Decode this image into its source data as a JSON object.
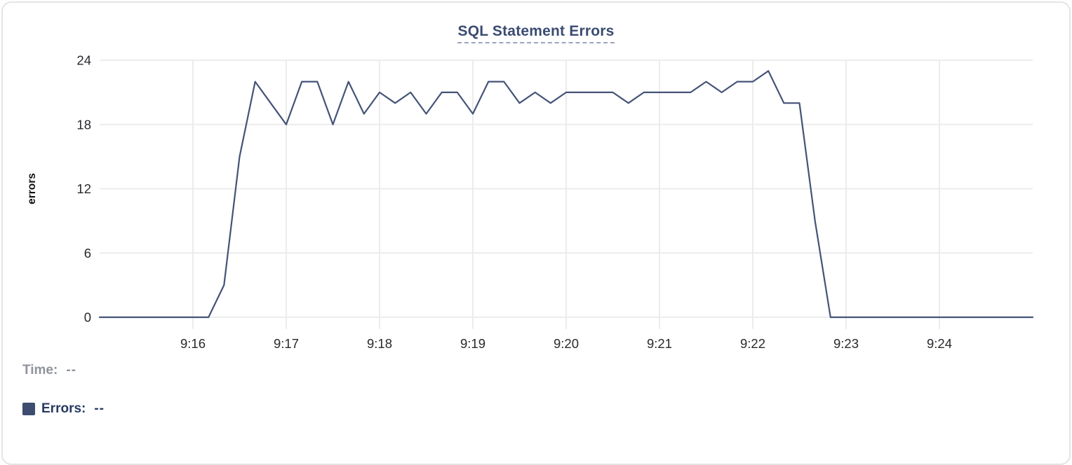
{
  "chart_data": {
    "type": "line",
    "title": "SQL Statement Errors",
    "xlabel": "",
    "ylabel": "errors",
    "ylim": [
      0,
      24
    ],
    "y_ticks": [
      0,
      6,
      12,
      18,
      24
    ],
    "x_range": [
      "9:15:00",
      "9:25:00"
    ],
    "x_tick_labels": [
      "9:16",
      "9:17",
      "9:18",
      "9:19",
      "9:20",
      "9:21",
      "9:22",
      "9:23",
      "9:24"
    ],
    "grid": true,
    "legend_position": "none",
    "series": [
      {
        "name": "Errors",
        "color": "#445377",
        "points": [
          [
            "9:15:00",
            0
          ],
          [
            "9:15:10",
            0
          ],
          [
            "9:15:20",
            0
          ],
          [
            "9:15:30",
            0
          ],
          [
            "9:15:40",
            0
          ],
          [
            "9:15:50",
            0
          ],
          [
            "9:16:00",
            0
          ],
          [
            "9:16:10",
            0
          ],
          [
            "9:16:20",
            3
          ],
          [
            "9:16:30",
            15
          ],
          [
            "9:16:40",
            22
          ],
          [
            "9:16:50",
            20
          ],
          [
            "9:17:00",
            18
          ],
          [
            "9:17:10",
            22
          ],
          [
            "9:17:20",
            22
          ],
          [
            "9:17:30",
            18
          ],
          [
            "9:17:40",
            22
          ],
          [
            "9:17:50",
            19
          ],
          [
            "9:18:00",
            21
          ],
          [
            "9:18:10",
            20
          ],
          [
            "9:18:20",
            21
          ],
          [
            "9:18:30",
            19
          ],
          [
            "9:18:40",
            21
          ],
          [
            "9:18:50",
            21
          ],
          [
            "9:19:00",
            19
          ],
          [
            "9:19:10",
            22
          ],
          [
            "9:19:20",
            22
          ],
          [
            "9:19:30",
            20
          ],
          [
            "9:19:40",
            21
          ],
          [
            "9:19:50",
            20
          ],
          [
            "9:20:00",
            21
          ],
          [
            "9:20:10",
            21
          ],
          [
            "9:20:20",
            21
          ],
          [
            "9:20:30",
            21
          ],
          [
            "9:20:40",
            20
          ],
          [
            "9:20:50",
            21
          ],
          [
            "9:21:00",
            21
          ],
          [
            "9:21:10",
            21
          ],
          [
            "9:21:20",
            21
          ],
          [
            "9:21:30",
            22
          ],
          [
            "9:21:40",
            21
          ],
          [
            "9:21:50",
            22
          ],
          [
            "9:22:00",
            22
          ],
          [
            "9:22:10",
            23
          ],
          [
            "9:22:20",
            20
          ],
          [
            "9:22:30",
            20
          ],
          [
            "9:22:40",
            9
          ],
          [
            "9:22:50",
            0
          ],
          [
            "9:23:00",
            0
          ],
          [
            "9:23:10",
            0
          ],
          [
            "9:23:20",
            0
          ],
          [
            "9:23:30",
            0
          ],
          [
            "9:23:40",
            0
          ],
          [
            "9:23:50",
            0
          ],
          [
            "9:24:00",
            0
          ],
          [
            "9:24:10",
            0
          ],
          [
            "9:24:20",
            0
          ],
          [
            "9:24:30",
            0
          ],
          [
            "9:24:40",
            0
          ],
          [
            "9:24:50",
            0
          ],
          [
            "9:25:00",
            0
          ]
        ]
      }
    ]
  },
  "readout": {
    "time_label": "Time:",
    "time_value": "--",
    "errors_label": "Errors:",
    "errors_value": "--"
  },
  "colors": {
    "line": "#445377",
    "title": "#3b4c71",
    "title_underline": "#9aa5bd",
    "gridline": "#ececee",
    "axis_text": "#27292d",
    "legend_gray": "#8f939b",
    "legend_navy": "#273a62",
    "swatch": "#3d4c6f",
    "panel_border": "#e3e4e8"
  }
}
